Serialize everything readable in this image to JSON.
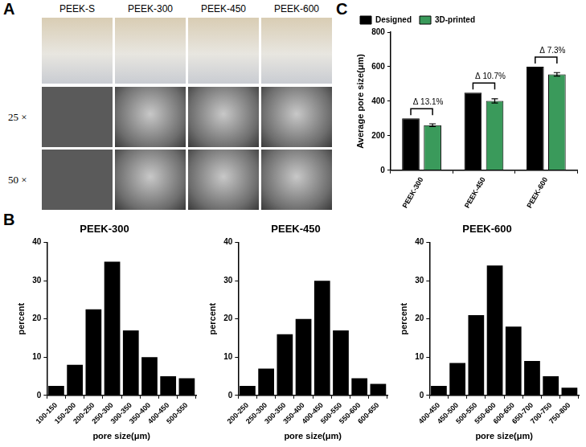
{
  "panel_labels": [
    "A",
    "B",
    "C"
  ],
  "image_panel": {
    "columns": [
      "PEEK-S",
      "PEEK-300",
      "PEEK-450",
      "PEEK-600"
    ],
    "rows": [
      "25 ×",
      "50 ×"
    ]
  },
  "chart_data": [
    {
      "type": "bar",
      "title": "PEEK-300",
      "categories": [
        "100-150",
        "150-200",
        "200-250",
        "250-300",
        "300-350",
        "350-400",
        "400-450",
        "500-550"
      ],
      "values": [
        2.5,
        8,
        22.5,
        35,
        17,
        10,
        5,
        4.5
      ],
      "color": "#000000",
      "xlabel": "pore size(μm)",
      "ylabel": "percent",
      "ylim": [
        0,
        40
      ],
      "yticks": [
        0,
        10,
        20,
        30,
        40
      ],
      "grid": false
    },
    {
      "type": "bar",
      "title": "PEEK-450",
      "categories": [
        "200-250",
        "250-300",
        "300-350",
        "350-400",
        "400-450",
        "500-550",
        "550-600",
        "600-650"
      ],
      "values": [
        2.5,
        7,
        16,
        20,
        30,
        17,
        4.5,
        3
      ],
      "color": "#000000",
      "xlabel": "pore size(μm)",
      "ylabel": "percent",
      "ylim": [
        0,
        40
      ],
      "yticks": [
        0,
        10,
        20,
        30,
        40
      ],
      "grid": false
    },
    {
      "type": "bar",
      "title": "PEEK-600",
      "categories": [
        "400-450",
        "450-500",
        "500-550",
        "550-600",
        "600-650",
        "650-700",
        "700-750",
        "750-800"
      ],
      "values": [
        2.5,
        8.5,
        21,
        34,
        18,
        9,
        5,
        2
      ],
      "color": "#000000",
      "xlabel": "pore size(μm)",
      "ylabel": "percent",
      "ylim": [
        0,
        40
      ],
      "yticks": [
        0,
        10,
        20,
        30,
        40
      ],
      "grid": false
    },
    {
      "type": "bar",
      "categories": [
        "PEEK-300",
        "PEEK-450",
        "PEEK-600"
      ],
      "series": [
        {
          "name": "Designed",
          "color": "#000000",
          "values": [
            300,
            450,
            600
          ]
        },
        {
          "name": "3D-printed",
          "color": "#3a9a5b",
          "values": [
            261,
            402,
            556
          ],
          "errors": [
            8,
            12,
            10
          ]
        }
      ],
      "annotations": [
        "Δ 13.1%",
        "Δ 10.7%",
        "Δ 7.3%"
      ],
      "ylabel": "Average pore size(μm)",
      "ylim": [
        0,
        800
      ],
      "yticks": [
        0,
        200,
        400,
        600,
        800
      ],
      "grid": false,
      "legend": "upper left"
    }
  ]
}
